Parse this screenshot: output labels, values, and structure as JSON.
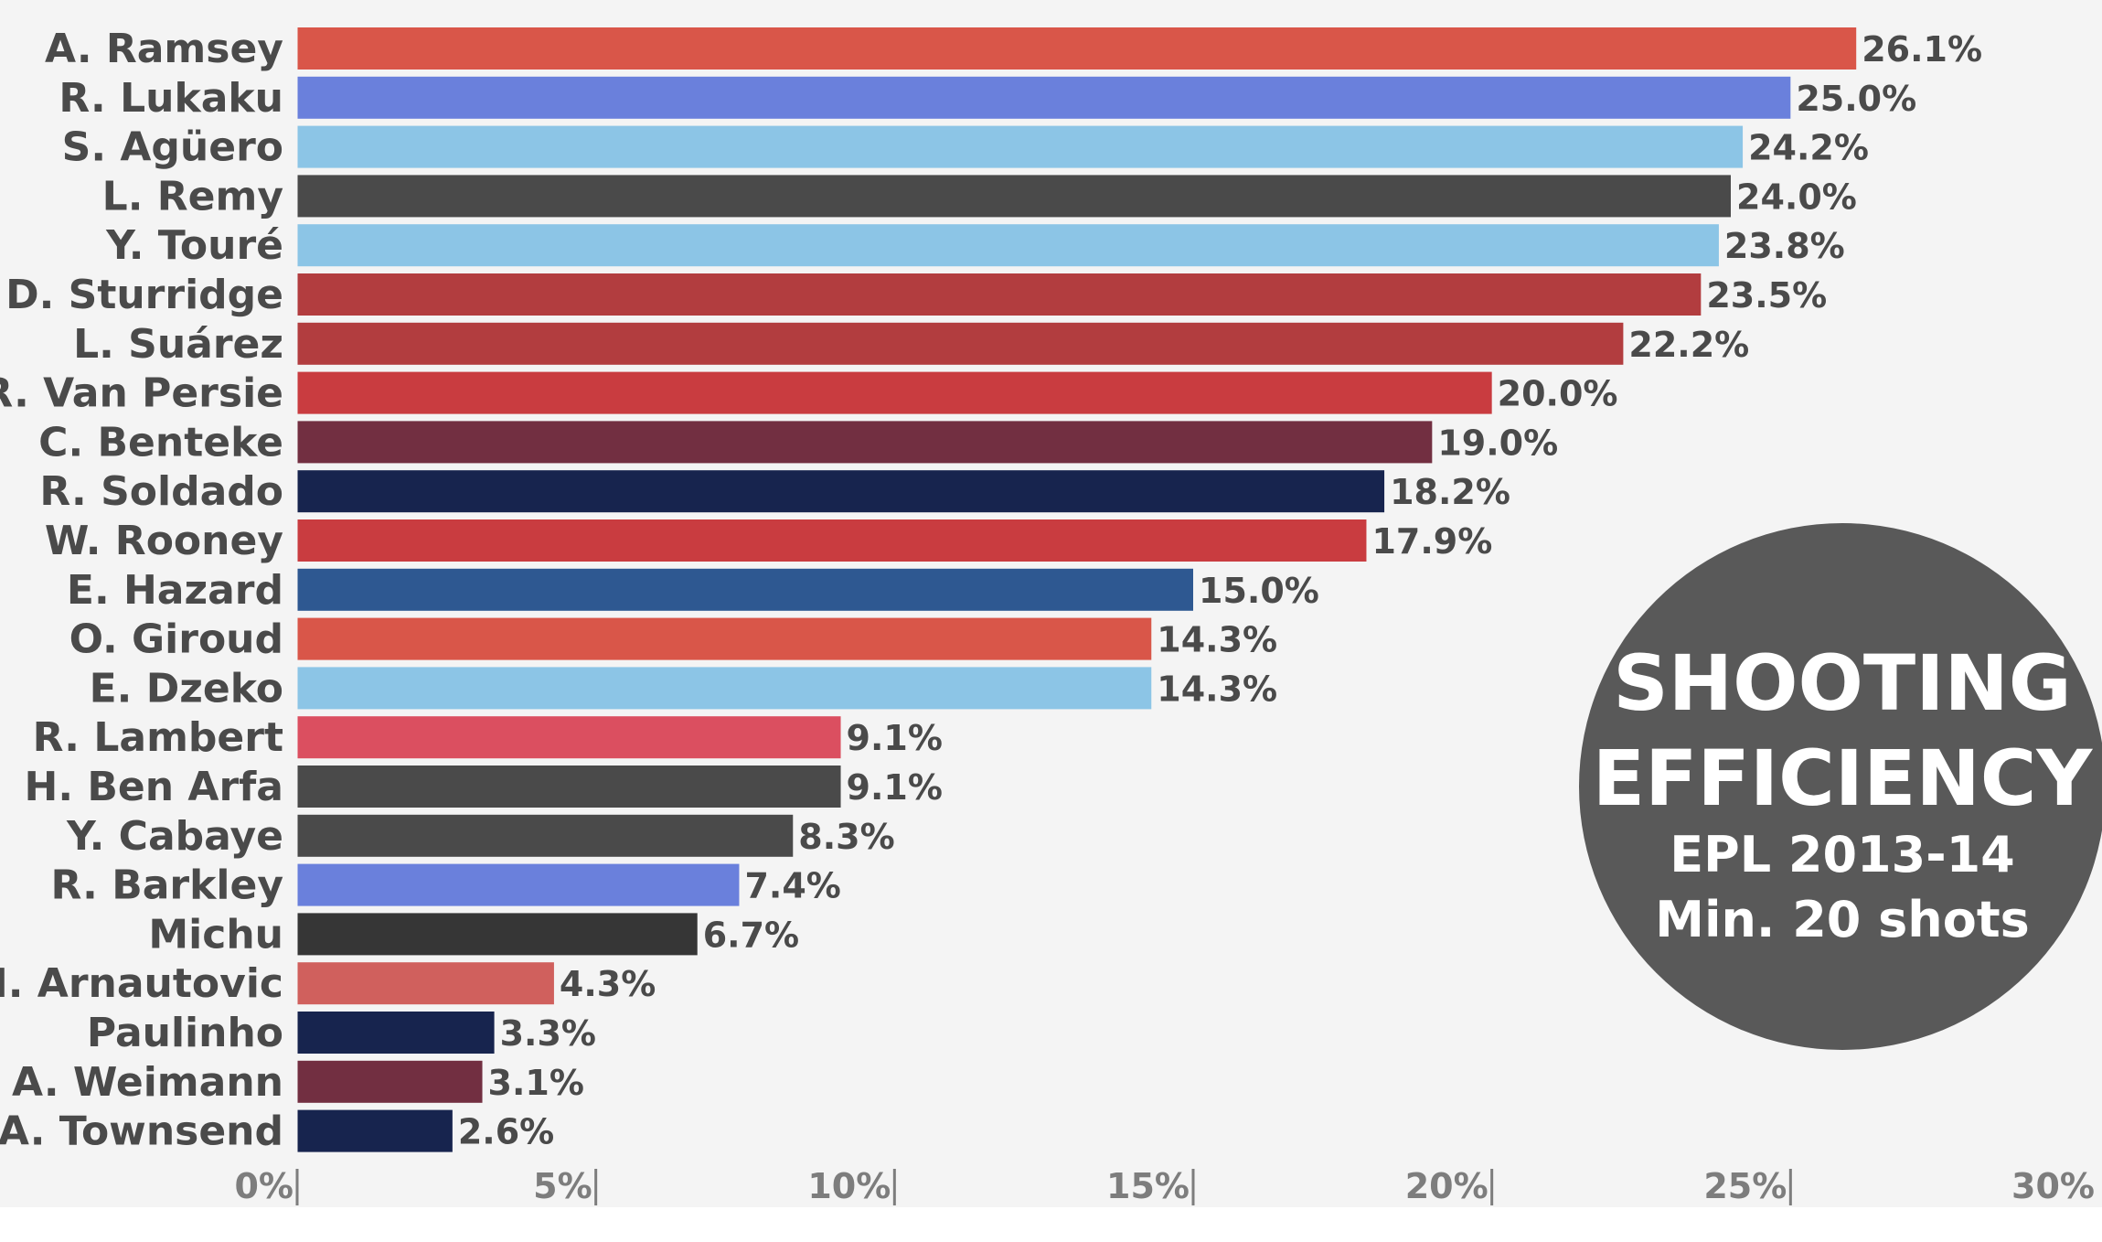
{
  "chart_data": {
    "type": "bar",
    "orientation": "horizontal",
    "categories": [
      "A. Ramsey",
      "R. Lukaku",
      "S. Agüero",
      "L. Remy",
      "Y. Touré",
      "D. Sturridge",
      "L. Suárez",
      "R. Van Persie",
      "C. Benteke",
      "R. Soldado",
      "W. Rooney",
      "E. Hazard",
      "O. Giroud",
      "E. Dzeko",
      "R. Lambert",
      "H. Ben Arfa",
      "Y. Cabaye",
      "R. Barkley",
      "Michu",
      "M. Arnautovic",
      "Paulinho",
      "A. Weimann",
      "A. Townsend"
    ],
    "values": [
      26.1,
      25.0,
      24.2,
      24.0,
      23.8,
      23.5,
      22.2,
      20.0,
      19.0,
      18.2,
      17.9,
      15.0,
      14.3,
      14.3,
      9.1,
      9.1,
      8.3,
      7.4,
      6.7,
      4.3,
      3.3,
      3.1,
      2.6
    ],
    "value_labels": [
      "26.1%",
      "25.0%",
      "24.2%",
      "24.0%",
      "23.8%",
      "23.5%",
      "22.2%",
      "20.0%",
      "19.0%",
      "18.2%",
      "17.9%",
      "15.0%",
      "14.3%",
      "14.3%",
      "9.1%",
      "9.1%",
      "8.3%",
      "7.4%",
      "6.7%",
      "4.3%",
      "3.3%",
      "3.1%",
      "2.6%"
    ],
    "colors": [
      "#d95649",
      "#6a80dc",
      "#8cc5e6",
      "#4a4a4a",
      "#8cc5e6",
      "#b23d3f",
      "#b23d3f",
      "#c93c40",
      "#722f41",
      "#17244e",
      "#c93c40",
      "#2e5891",
      "#d95649",
      "#8cc5e6",
      "#db4f60",
      "#4a4a4a",
      "#4a4a4a",
      "#6a80dc",
      "#363636",
      "#d0605d",
      "#17244e",
      "#722f41",
      "#17244e"
    ],
    "xlim": [
      0,
      30
    ],
    "xticks": [
      0,
      5,
      10,
      15,
      20,
      25,
      30
    ],
    "xtick_labels": [
      "0%",
      "5%",
      "10%",
      "15%",
      "20%",
      "25%",
      "30%"
    ],
    "grid": false,
    "legend": "none"
  },
  "badge": {
    "line1": "SHOOTING",
    "line2": "EFFICIENCY",
    "line3": "EPL 2013-14",
    "line4": "Min. 20 shots",
    "color": "#595959"
  },
  "colors": {
    "plot_background": "#f4f4f4",
    "label_text": "#4a4a4a",
    "tick_text": "#7d7d7d"
  }
}
